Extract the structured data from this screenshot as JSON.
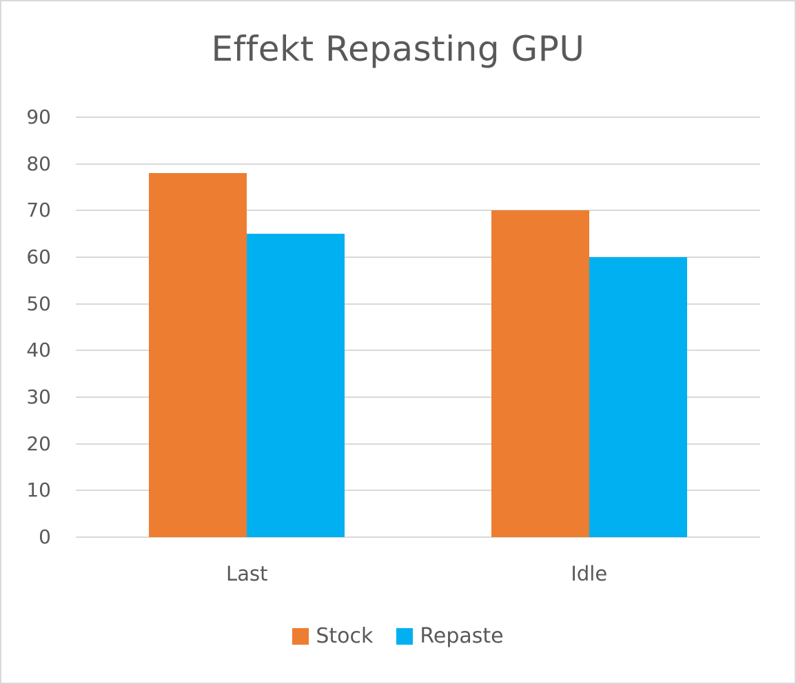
{
  "chart_data": {
    "type": "bar",
    "title": "Effekt Repasting GPU",
    "categories": [
      "Last",
      "Idle"
    ],
    "series": [
      {
        "name": "Stock",
        "color": "#ED7D31",
        "values": [
          78,
          70
        ]
      },
      {
        "name": "Repaste",
        "color": "#00B0F0",
        "values": [
          65,
          60
        ]
      }
    ],
    "xlabel": "",
    "ylabel": "",
    "ylim": [
      0,
      90
    ],
    "yticks": [
      0,
      10,
      20,
      30,
      40,
      50,
      60,
      70,
      80,
      90
    ],
    "grid": true,
    "legend_position": "bottom"
  },
  "colors": {
    "grid": "#D9D9D9",
    "text": "#595959",
    "border": "#D9D9D9"
  }
}
